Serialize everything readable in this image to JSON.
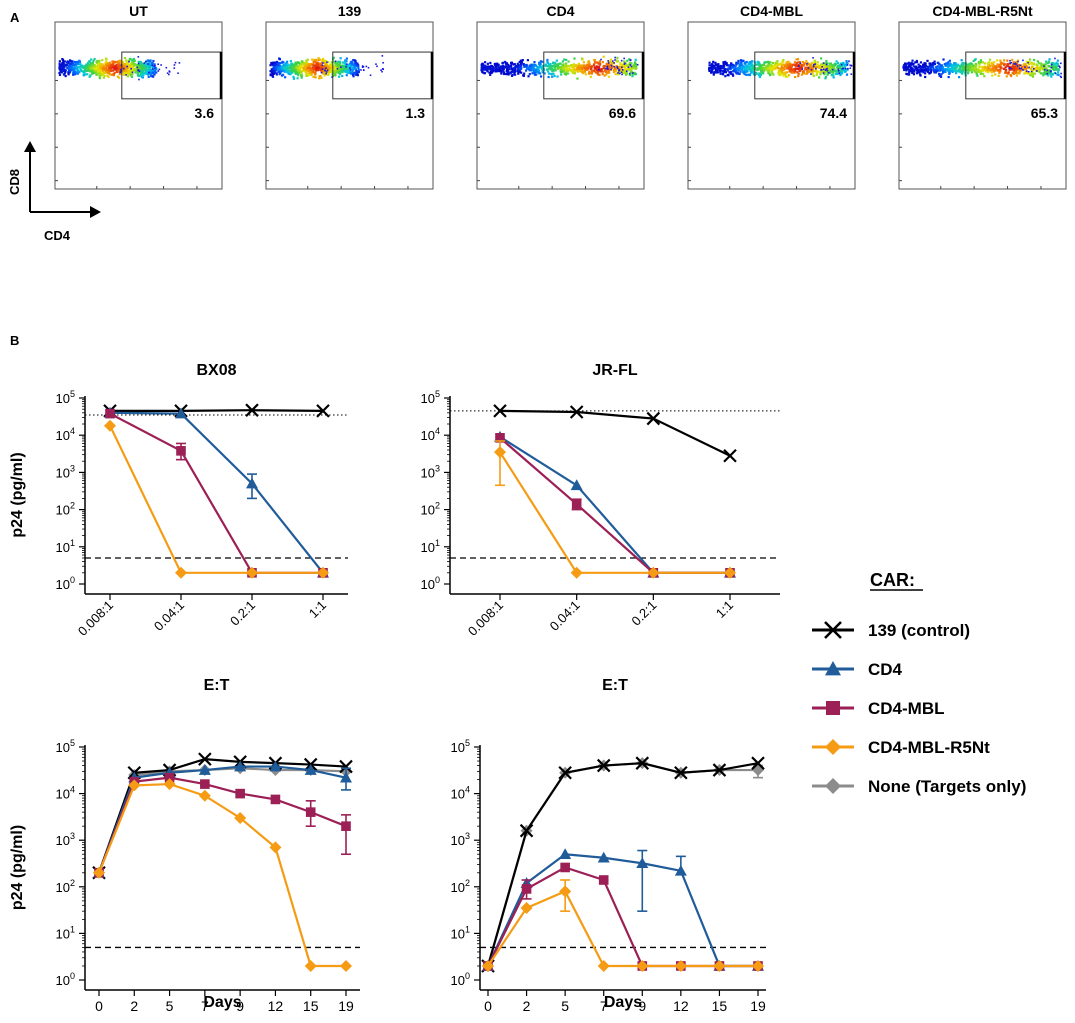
{
  "panel_labels": {
    "a": "A",
    "b": "B"
  },
  "flow_axis": {
    "y_label": "CD8",
    "x_label": "CD4"
  },
  "flow_plots": [
    {
      "title": "UT",
      "gate_value": "3.6",
      "gate_start_frac": 0.4,
      "population": [
        0.02,
        0.6
      ],
      "hot": 0.35,
      "tail": 0.75
    },
    {
      "title": "139",
      "gate_value": "1.3",
      "gate_start_frac": 0.4,
      "population": [
        0.02,
        0.55
      ],
      "hot": 0.3,
      "tail": 0.7
    },
    {
      "title": "CD4",
      "gate_value": "69.6",
      "gate_start_frac": 0.4,
      "population": [
        0.02,
        0.95
      ],
      "hot": 0.72,
      "tail": 0.98
    },
    {
      "title": "CD4-MBL",
      "gate_value": "74.4",
      "gate_start_frac": 0.4,
      "population": [
        0.12,
        0.95
      ],
      "hot": 0.65,
      "tail": 0.98
    },
    {
      "title": "CD4-MBL-R5Nt",
      "gate_value": "65.3",
      "gate_start_frac": 0.4,
      "population": [
        0.02,
        0.95
      ],
      "hot": 0.65,
      "tail": 0.98
    }
  ],
  "legend": {
    "title": "CAR:",
    "entries": [
      {
        "key": "c139",
        "label": "139 (control)"
      },
      {
        "key": "cd4",
        "label": "CD4"
      },
      {
        "key": "mbl",
        "label": "CD4-MBL"
      },
      {
        "key": "r5nt",
        "label": "CD4-MBL-R5Nt"
      },
      {
        "key": "none",
        "label": "None (Targets only)"
      }
    ]
  },
  "series_styles": {
    "c139": {
      "color": "#000000",
      "marker": "x"
    },
    "cd4": {
      "color": "#1f5c99",
      "marker": "triangle"
    },
    "mbl": {
      "color": "#9c1f56",
      "marker": "square"
    },
    "r5nt": {
      "color": "#f59b14",
      "marker": "diamond"
    },
    "none": {
      "color": "#8c8c8c",
      "marker": "diamond"
    }
  },
  "y_tick_labels": [
    {
      "base": "10",
      "exp": "0"
    },
    {
      "base": "10",
      "exp": "1"
    },
    {
      "base": "10",
      "exp": "2"
    },
    {
      "base": "10",
      "exp": "3"
    },
    {
      "base": "10",
      "exp": "4"
    },
    {
      "base": "10",
      "exp": "5"
    }
  ],
  "chart_data": [
    {
      "type": "line",
      "title": "BX08",
      "xlabel": "E:T",
      "ylabel": "p24 (pg/ml)",
      "yscale": "log",
      "ylim": [
        1,
        100000
      ],
      "categories": [
        "0.008:1",
        "0.04:1",
        "0.2:1",
        "1:1"
      ],
      "reference_lines": [
        {
          "style": "dotted",
          "value": 35000
        },
        {
          "style": "dashed",
          "value": 5
        }
      ],
      "series": [
        {
          "name": "139 (control)",
          "key": "c139",
          "values": [
            45000,
            45000,
            47000,
            45000
          ]
        },
        {
          "name": "CD4",
          "key": "cd4",
          "values": [
            40000,
            38000,
            500,
            2
          ],
          "error_high": [
            null,
            null,
            900,
            null
          ],
          "error_low": [
            null,
            null,
            200,
            null
          ]
        },
        {
          "name": "CD4-MBL",
          "key": "mbl",
          "values": [
            38000,
            3800,
            2,
            2
          ],
          "error_high": [
            null,
            6000,
            null,
            null
          ],
          "error_low": [
            null,
            2200,
            null,
            null
          ]
        },
        {
          "name": "CD4-MBL-R5Nt",
          "key": "r5nt",
          "values": [
            18000,
            2,
            2,
            2
          ]
        }
      ]
    },
    {
      "type": "line",
      "title": "JR-FL",
      "xlabel": "E:T",
      "ylabel": "",
      "yscale": "log",
      "ylim": [
        1,
        100000
      ],
      "categories": [
        "0.008:1",
        "0.04:1",
        "0.2:1",
        "1:1"
      ],
      "reference_lines": [
        {
          "style": "dotted",
          "value": 45000
        },
        {
          "style": "dashed",
          "value": 5
        }
      ],
      "series": [
        {
          "name": "139 (control)",
          "key": "c139",
          "values": [
            45000,
            42000,
            28000,
            2800
          ]
        },
        {
          "name": "CD4",
          "key": "cd4",
          "values": [
            9000,
            450,
            2,
            2
          ]
        },
        {
          "name": "CD4-MBL",
          "key": "mbl",
          "values": [
            8500,
            140,
            2,
            2
          ],
          "error_high": [
            null,
            190,
            null,
            null
          ],
          "error_low": [
            null,
            100,
            null,
            null
          ]
        },
        {
          "name": "CD4-MBL-R5Nt",
          "key": "r5nt",
          "values": [
            3500,
            2,
            2,
            2
          ],
          "error_high": [
            7000,
            null,
            null,
            null
          ],
          "error_low": [
            450,
            null,
            null,
            null
          ]
        }
      ]
    },
    {
      "type": "line",
      "title": "",
      "xlabel": "Days",
      "ylabel": "p24 (pg/ml)",
      "yscale": "log",
      "ylim": [
        1,
        100000
      ],
      "categories": [
        "0",
        "2",
        "5",
        "7",
        "9",
        "12",
        "15",
        "19"
      ],
      "reference_lines": [
        {
          "style": "dashed",
          "value": 5
        }
      ],
      "series": [
        {
          "name": "None (Targets only)",
          "key": "none",
          "values": [
            200,
            25000,
            30000,
            32000,
            35000,
            32000,
            32000,
            30000
          ]
        },
        {
          "name": "139 (control)",
          "key": "c139",
          "values": [
            200,
            28000,
            32000,
            55000,
            48000,
            45000,
            42000,
            38000
          ]
        },
        {
          "name": "CD4",
          "key": "cd4",
          "values": [
            200,
            22000,
            28000,
            32000,
            38000,
            38000,
            32000,
            22000
          ],
          "error_high": [
            null,
            null,
            null,
            null,
            null,
            null,
            null,
            35000
          ],
          "error_low": [
            null,
            null,
            null,
            null,
            null,
            null,
            null,
            12000
          ]
        },
        {
          "name": "CD4-MBL",
          "key": "mbl",
          "values": [
            200,
            18000,
            22000,
            16000,
            10000,
            7500,
            4000,
            2000
          ],
          "error_high": [
            null,
            null,
            null,
            null,
            null,
            null,
            7000,
            3500
          ],
          "error_low": [
            null,
            null,
            null,
            null,
            null,
            null,
            2000,
            500
          ]
        },
        {
          "name": "CD4-MBL-R5Nt",
          "key": "r5nt",
          "values": [
            200,
            15000,
            16000,
            9000,
            3000,
            700,
            2,
            2
          ]
        }
      ]
    },
    {
      "type": "line",
      "title": "",
      "xlabel": "Days",
      "ylabel": "",
      "yscale": "log",
      "ylim": [
        1,
        100000
      ],
      "categories": [
        "0",
        "2",
        "5",
        "7",
        "9",
        "12",
        "15",
        "19"
      ],
      "reference_lines": [
        {
          "style": "dashed",
          "value": 5
        }
      ],
      "series": [
        {
          "name": "None (Targets only)",
          "key": "none",
          "values": [
            2,
            1600,
            28000,
            40000,
            45000,
            28000,
            32000,
            32000
          ],
          "error_high": [
            null,
            null,
            null,
            null,
            null,
            null,
            null,
            40000
          ],
          "error_low": [
            null,
            null,
            null,
            null,
            null,
            null,
            null,
            22000
          ]
        },
        {
          "name": "139 (control)",
          "key": "c139",
          "values": [
            2,
            1600,
            28000,
            40000,
            45000,
            28000,
            32000,
            45000
          ]
        },
        {
          "name": "CD4",
          "key": "cd4",
          "values": [
            2,
            120,
            500,
            420,
            320,
            220,
            2,
            2
          ],
          "error_high": [
            null,
            null,
            null,
            null,
            600,
            450,
            null,
            null
          ],
          "error_low": [
            null,
            null,
            null,
            null,
            30,
            null,
            null,
            null
          ]
        },
        {
          "name": "CD4-MBL",
          "key": "mbl",
          "values": [
            2,
            90,
            260,
            140,
            2,
            2,
            2,
            2
          ],
          "error_high": [
            null,
            140,
            null,
            null,
            null,
            null,
            null,
            null
          ],
          "error_low": [
            null,
            55,
            null,
            null,
            null,
            null,
            null,
            null
          ]
        },
        {
          "name": "CD4-MBL-R5Nt",
          "key": "r5nt",
          "values": [
            2,
            35,
            80,
            2,
            2,
            2,
            2,
            2
          ],
          "error_high": [
            null,
            null,
            140,
            null,
            null,
            null,
            null,
            null
          ],
          "error_low": [
            null,
            null,
            30,
            null,
            null,
            null,
            null,
            null
          ]
        }
      ]
    }
  ]
}
